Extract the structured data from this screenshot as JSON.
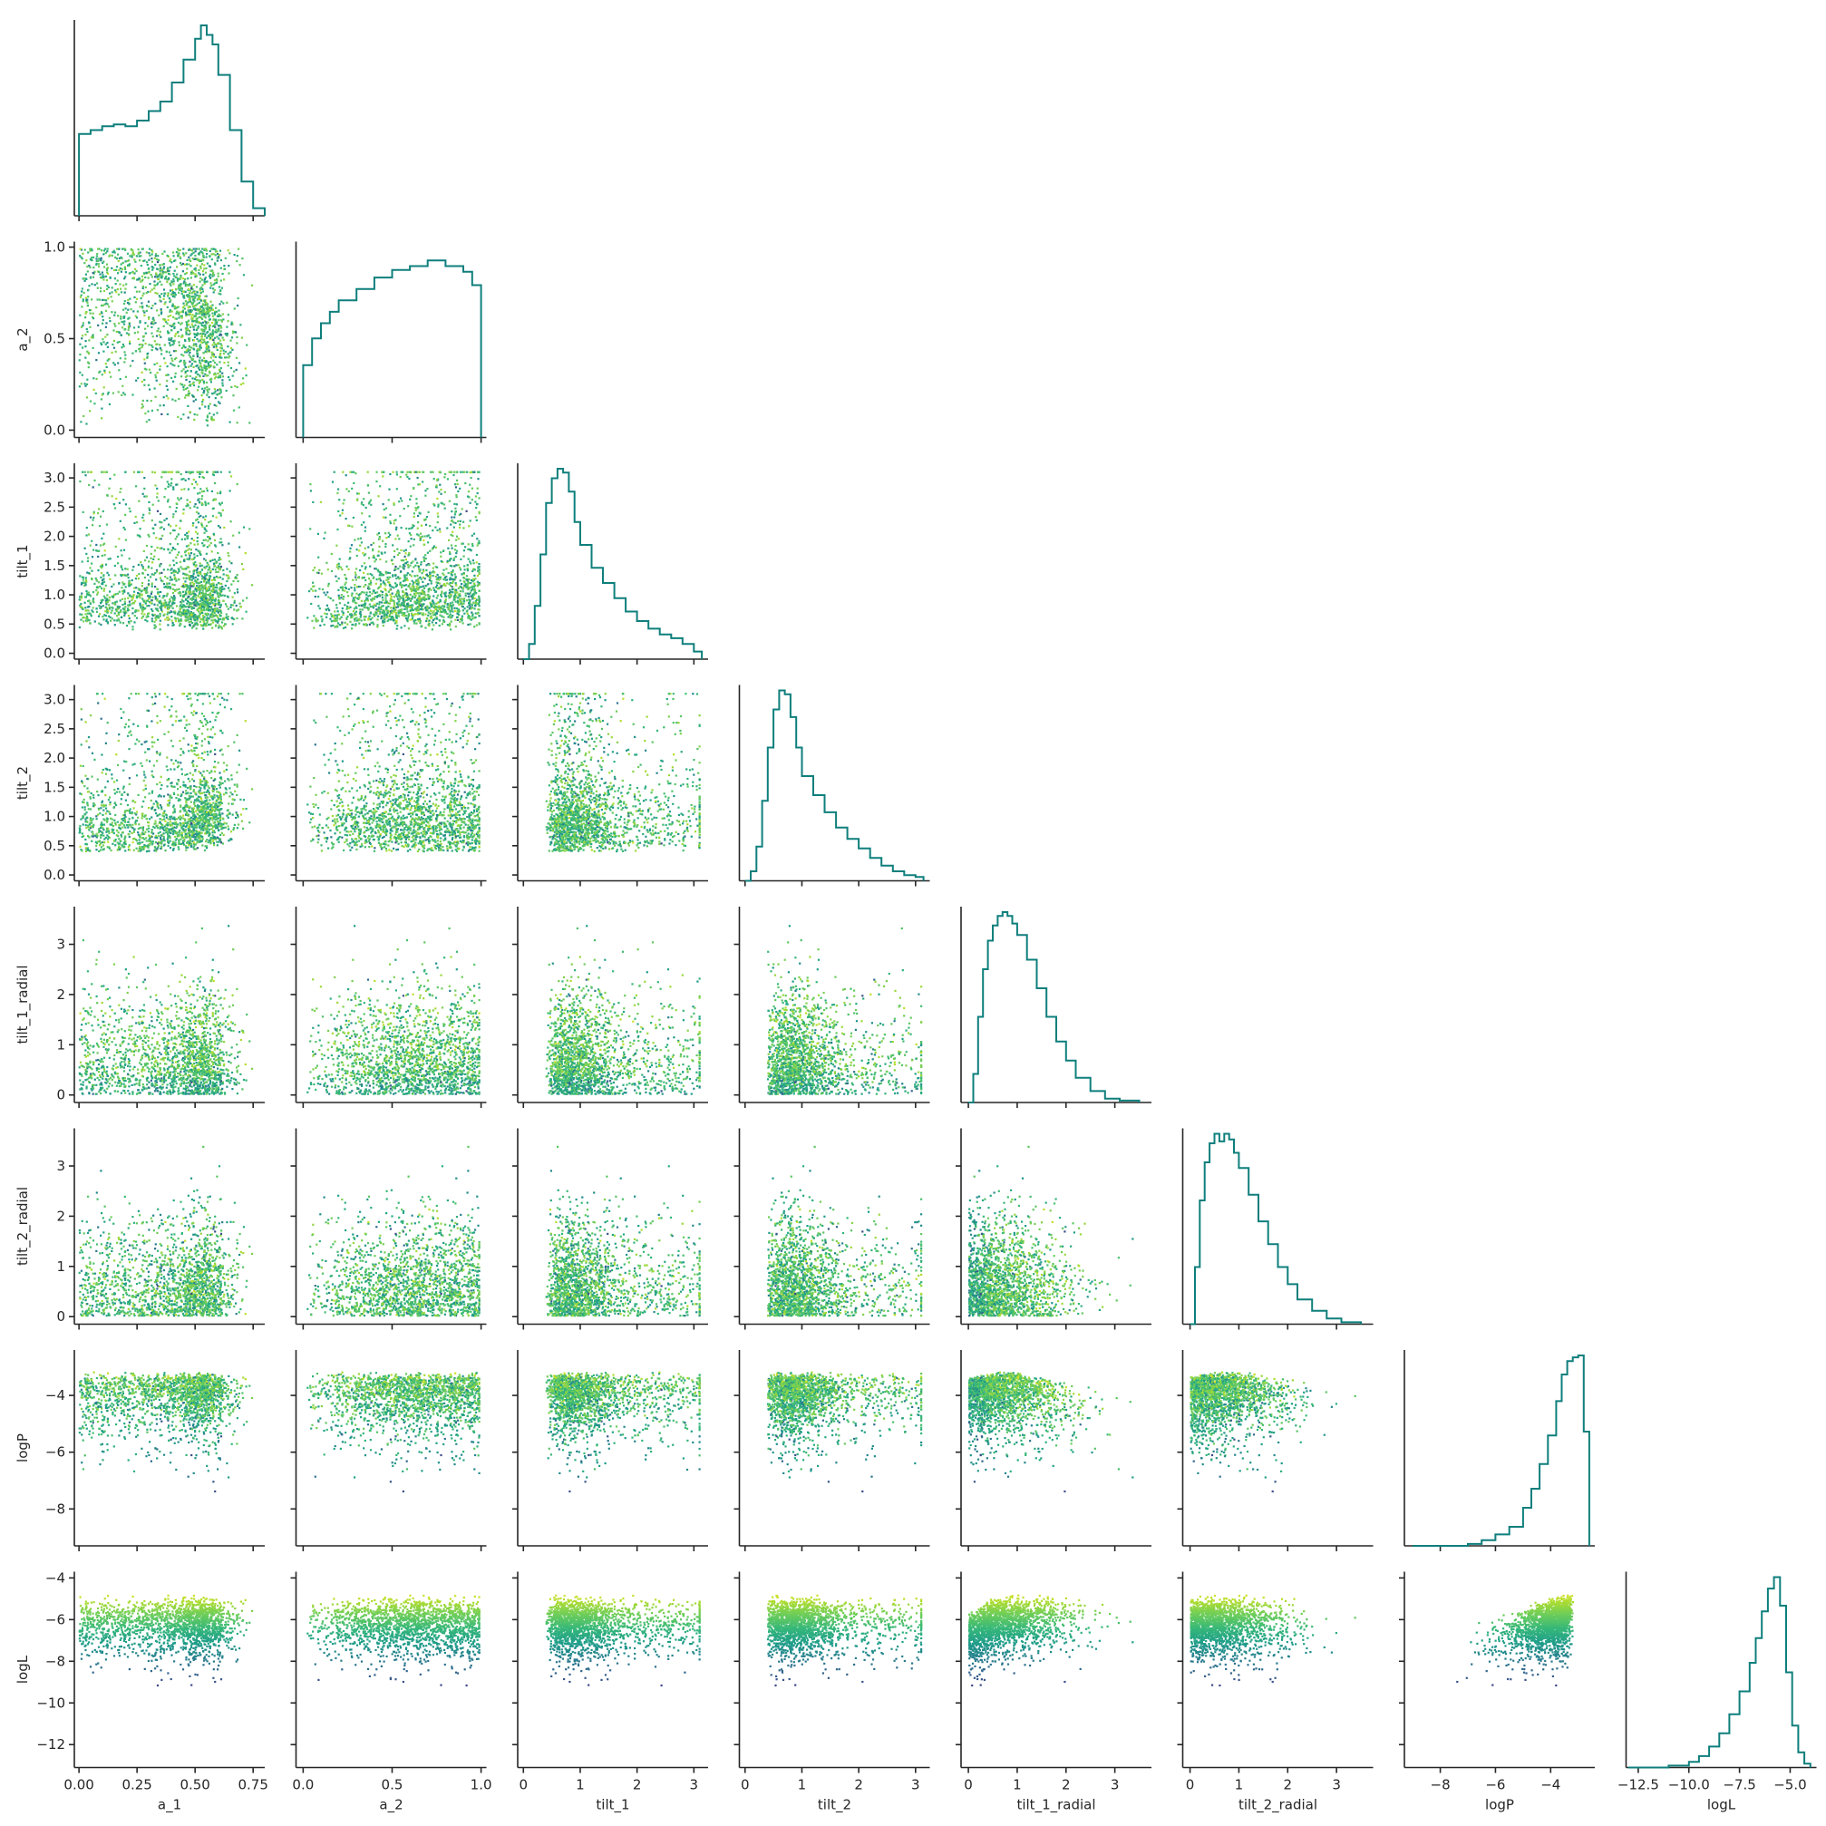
{
  "chart_data": {
    "type": "pairplot-corner",
    "title": "",
    "hist_color": "#0e7f7c",
    "point_colormap": "viridis",
    "point_color_variable": "logL",
    "variables": [
      {
        "name": "a_1",
        "label": "a_1",
        "range": [
          -0.02,
          0.8
        ],
        "ticks": [
          0.0,
          0.25,
          0.5,
          0.75
        ],
        "tick_labels": [
          "0.00",
          "0.25",
          "0.50",
          "0.75"
        ]
      },
      {
        "name": "a_2",
        "label": "a_2",
        "range": [
          -0.04,
          1.03
        ],
        "ticks": [
          0.0,
          0.5,
          1.0
        ],
        "tick_labels": [
          "0.0",
          "0.5",
          "1.0"
        ]
      },
      {
        "name": "tilt_1",
        "label": "tilt_1",
        "range": [
          -0.1,
          3.25
        ],
        "ticks": [
          0.0,
          0.5,
          1.0,
          1.5,
          2.0,
          2.5,
          3.0
        ],
        "tick_labels": [
          "0.0",
          "0.5",
          "1.0",
          "1.5",
          "2.0",
          "2.5",
          "3.0"
        ],
        "x_ticks": [
          0,
          1,
          2,
          3
        ],
        "x_tick_labels": [
          "0",
          "1",
          "2",
          "3"
        ]
      },
      {
        "name": "tilt_2",
        "label": "tilt_2",
        "range": [
          -0.1,
          3.25
        ],
        "ticks": [
          0.0,
          0.5,
          1.0,
          1.5,
          2.0,
          2.5,
          3.0
        ],
        "tick_labels": [
          "0.0",
          "0.5",
          "1.0",
          "1.5",
          "2.0",
          "2.5",
          "3.0"
        ],
        "x_ticks": [
          0,
          1,
          2,
          3
        ],
        "x_tick_labels": [
          "0",
          "1",
          "2",
          "3"
        ]
      },
      {
        "name": "tilt_1_radial",
        "label": "tilt_1_radial",
        "range": [
          -0.15,
          3.75
        ],
        "ticks": [
          0,
          1,
          2,
          3
        ],
        "tick_labels": [
          "0",
          "1",
          "2",
          "3"
        ]
      },
      {
        "name": "tilt_2_radial",
        "label": "tilt_2_radial",
        "range": [
          -0.15,
          3.75
        ],
        "ticks": [
          0,
          1,
          2,
          3
        ],
        "tick_labels": [
          "0",
          "1",
          "2",
          "3"
        ]
      },
      {
        "name": "logP",
        "label": "logP",
        "range": [
          -9.3,
          -2.4
        ],
        "ticks": [
          -8,
          -6,
          -4
        ],
        "tick_labels": [
          "−8",
          "−6",
          "−4"
        ]
      },
      {
        "name": "logL",
        "label": "logL",
        "range": [
          -13.1,
          -3.7
        ],
        "ticks": [
          -12,
          -10,
          -8,
          -6,
          -4
        ],
        "tick_labels": [
          "−12",
          "−10",
          "−8",
          "−6",
          "−4"
        ],
        "x_ticks": [
          -12.5,
          -10.0,
          -7.5,
          -5.0
        ],
        "x_tick_labels": [
          "−12.5",
          "−10.0",
          "−7.5",
          "−5.0"
        ]
      }
    ],
    "histograms": [
      {
        "variable": "a_1",
        "x": [
          0.0,
          0.05,
          0.1,
          0.15,
          0.2,
          0.25,
          0.3,
          0.35,
          0.4,
          0.45,
          0.5,
          0.525,
          0.55,
          0.575,
          0.6,
          0.65,
          0.7,
          0.75,
          0.8
        ],
        "y": [
          0.43,
          0.45,
          0.47,
          0.48,
          0.47,
          0.5,
          0.55,
          0.6,
          0.7,
          0.82,
          0.93,
          1.0,
          0.95,
          0.9,
          0.74,
          0.45,
          0.18,
          0.04,
          0.0
        ]
      },
      {
        "variable": "a_2",
        "x": [
          0.0,
          0.05,
          0.1,
          0.15,
          0.2,
          0.3,
          0.4,
          0.5,
          0.6,
          0.7,
          0.8,
          0.9,
          0.95,
          1.0
        ],
        "y": [
          0.38,
          0.52,
          0.6,
          0.66,
          0.72,
          0.78,
          0.84,
          0.88,
          0.9,
          0.93,
          0.9,
          0.87,
          0.8,
          0.8
        ]
      },
      {
        "variable": "tilt_1",
        "x": [
          0.0,
          0.1,
          0.2,
          0.3,
          0.4,
          0.5,
          0.6,
          0.7,
          0.8,
          0.9,
          1.0,
          1.2,
          1.4,
          1.6,
          1.8,
          2.0,
          2.2,
          2.4,
          2.6,
          2.8,
          3.0,
          3.14
        ],
        "y": [
          0.0,
          0.08,
          0.28,
          0.55,
          0.82,
          0.95,
          1.0,
          0.98,
          0.88,
          0.72,
          0.6,
          0.48,
          0.4,
          0.32,
          0.25,
          0.2,
          0.16,
          0.13,
          0.11,
          0.08,
          0.04,
          0.0
        ]
      },
      {
        "variable": "tilt_2",
        "x": [
          0.0,
          0.1,
          0.2,
          0.3,
          0.4,
          0.5,
          0.6,
          0.7,
          0.8,
          0.9,
          1.0,
          1.2,
          1.4,
          1.6,
          1.8,
          2.0,
          2.2,
          2.4,
          2.6,
          2.8,
          3.0,
          3.14
        ],
        "y": [
          0.0,
          0.05,
          0.18,
          0.42,
          0.7,
          0.9,
          1.0,
          0.98,
          0.86,
          0.7,
          0.55,
          0.45,
          0.36,
          0.28,
          0.22,
          0.17,
          0.12,
          0.08,
          0.05,
          0.03,
          0.02,
          0.0
        ]
      },
      {
        "variable": "tilt_1_radial",
        "x": [
          0.0,
          0.1,
          0.2,
          0.3,
          0.4,
          0.5,
          0.6,
          0.7,
          0.8,
          0.9,
          1.0,
          1.2,
          1.4,
          1.6,
          1.8,
          2.0,
          2.2,
          2.5,
          2.8,
          3.1,
          3.5
        ],
        "y": [
          0.0,
          0.15,
          0.45,
          0.7,
          0.85,
          0.93,
          0.98,
          1.0,
          0.98,
          0.94,
          0.88,
          0.75,
          0.6,
          0.45,
          0.32,
          0.22,
          0.13,
          0.06,
          0.02,
          0.01,
          0.0
        ]
      },
      {
        "variable": "tilt_2_radial",
        "x": [
          0.0,
          0.1,
          0.2,
          0.3,
          0.4,
          0.5,
          0.6,
          0.7,
          0.8,
          0.9,
          1.0,
          1.2,
          1.4,
          1.6,
          1.8,
          2.0,
          2.2,
          2.5,
          2.8,
          3.1,
          3.5
        ],
        "y": [
          0.0,
          0.3,
          0.65,
          0.85,
          0.95,
          1.0,
          0.96,
          1.0,
          0.97,
          0.9,
          0.82,
          0.68,
          0.54,
          0.42,
          0.3,
          0.21,
          0.13,
          0.07,
          0.03,
          0.01,
          0.0
        ]
      },
      {
        "variable": "logP",
        "x": [
          -9.0,
          -8.0,
          -7.0,
          -6.5,
          -6.0,
          -5.5,
          -5.0,
          -4.7,
          -4.4,
          -4.1,
          -3.8,
          -3.6,
          -3.4,
          -3.2,
          -3.0,
          -2.8,
          -2.6
        ],
        "y": [
          0.0,
          0.0,
          0.01,
          0.03,
          0.06,
          0.1,
          0.2,
          0.3,
          0.43,
          0.58,
          0.76,
          0.9,
          0.97,
          0.99,
          1.0,
          0.6,
          0.0
        ]
      },
      {
        "variable": "logL",
        "x": [
          -13.0,
          -12.0,
          -11.0,
          -10.0,
          -9.5,
          -9.0,
          -8.5,
          -8.0,
          -7.5,
          -7.0,
          -6.7,
          -6.4,
          -6.1,
          -5.8,
          -5.5,
          -5.2,
          -4.9,
          -4.6,
          -4.3,
          -4.0
        ],
        "y": [
          0.0,
          0.0,
          0.01,
          0.03,
          0.06,
          0.11,
          0.18,
          0.28,
          0.4,
          0.55,
          0.68,
          0.82,
          0.94,
          1.0,
          0.85,
          0.5,
          0.22,
          0.08,
          0.02,
          0.0
        ]
      }
    ],
    "scatter_point_count_per_panel": 1800,
    "grid": false,
    "legend": "none"
  }
}
